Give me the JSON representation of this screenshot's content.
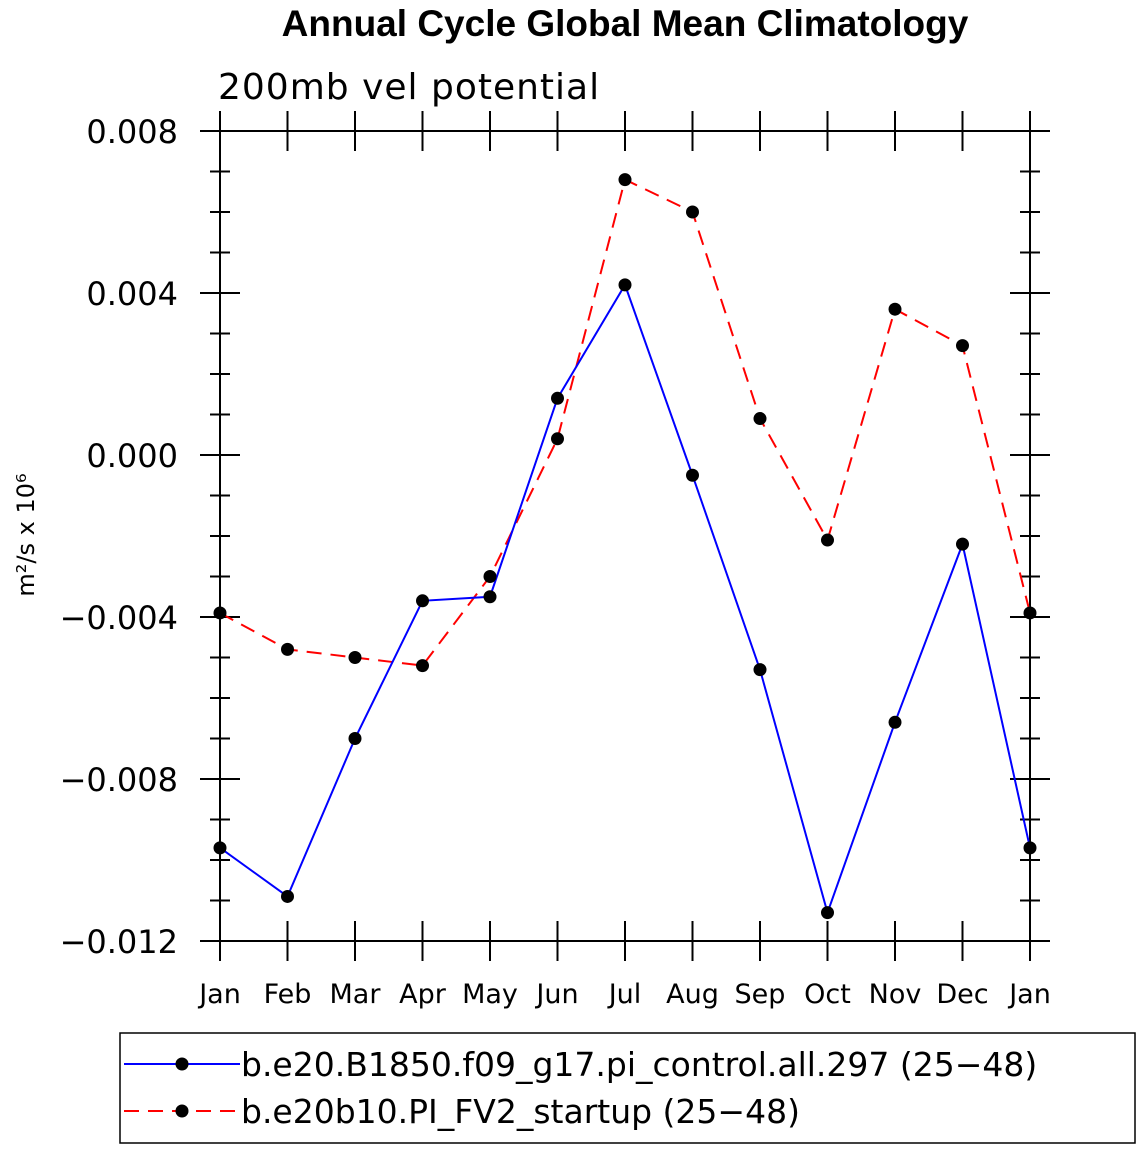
{
  "chart_data": {
    "type": "line",
    "title": "Annual Cycle Global Mean Climatology",
    "subtitle": "200mb vel potential",
    "ylabel": "m²/s x 10⁶",
    "xlabel": "",
    "categories": [
      "Jan",
      "Feb",
      "Mar",
      "Apr",
      "May",
      "Jun",
      "Jul",
      "Aug",
      "Sep",
      "Oct",
      "Nov",
      "Dec",
      "Jan"
    ],
    "ylim": [
      -0.012,
      0.008
    ],
    "yticks": [
      0.008,
      0.004,
      0.0,
      -0.004,
      -0.008,
      -0.012
    ],
    "ytick_labels": [
      "0.008",
      "0.004",
      "0.000",
      "−0.004",
      "−0.008",
      "−0.012"
    ],
    "grid": false,
    "legend_position": "bottom",
    "series": [
      {
        "name": "b.e20.B1850.f09_g17.pi_control.all.297 (25−48)",
        "color": "#0000ff",
        "dash": "solid",
        "marker": "filled-circle",
        "values": [
          -0.0097,
          -0.0109,
          -0.007,
          -0.0036,
          -0.0035,
          0.0014,
          0.0042,
          -0.0005,
          -0.0053,
          -0.0113,
          -0.0066,
          -0.0022,
          -0.0097
        ]
      },
      {
        "name": "b.e20b10.PI_FV2_startup (25−48)",
        "color": "#ff0000",
        "dash": "dashed",
        "marker": "filled-circle",
        "values": [
          -0.0039,
          -0.0048,
          -0.005,
          -0.0052,
          -0.003,
          0.0004,
          0.0068,
          0.006,
          0.0009,
          -0.0021,
          0.0036,
          0.0027,
          -0.0039
        ]
      }
    ]
  }
}
